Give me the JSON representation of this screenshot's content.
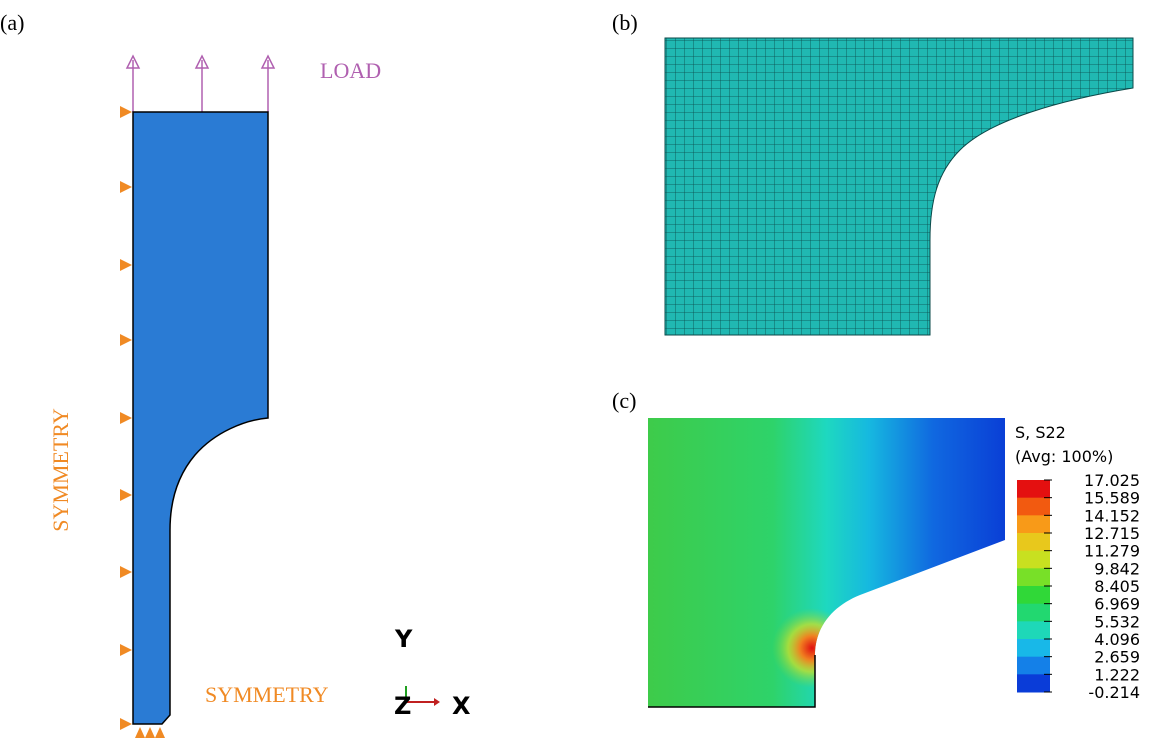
{
  "panels": {
    "a": {
      "label": "(a)",
      "load": "LOAD",
      "symmetry_left": "SYMMETRY",
      "symmetry_bottom": "SYMMETRY",
      "triad": {
        "y": "Y",
        "z": "Z",
        "x": "X"
      }
    },
    "b": {
      "label": "(b)"
    },
    "c": {
      "label": "(c)",
      "legend": {
        "title": "S, S22",
        "subtitle": "(Avg: 100%)",
        "labels": [
          "17.025",
          "15.589",
          "14.152",
          "12.715",
          "11.279",
          "9.842",
          "8.405",
          "6.969",
          "5.532",
          "4.096",
          "2.659",
          "1.222",
          "-0.214"
        ]
      }
    }
  }
}
